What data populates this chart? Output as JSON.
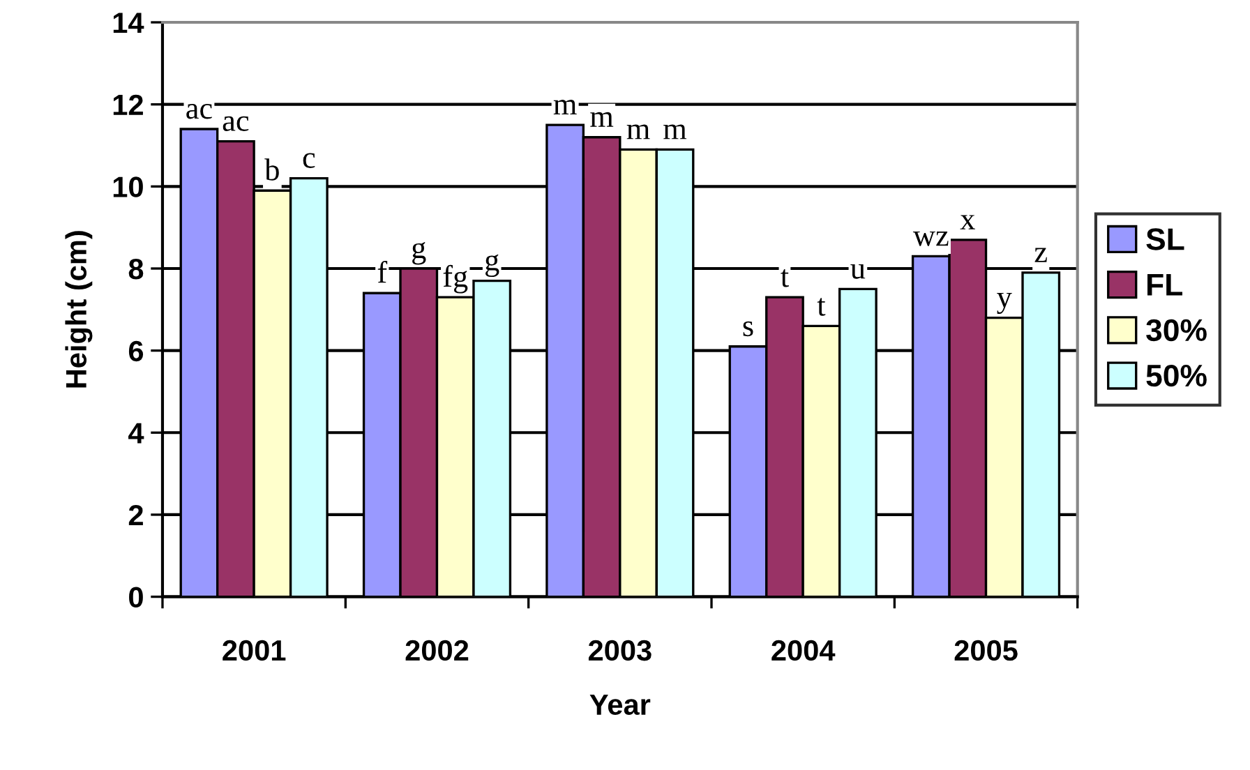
{
  "chart_data": {
    "type": "bar",
    "xlabel": "Year",
    "ylabel": "Height (cm)",
    "categories": [
      "2001",
      "2002",
      "2003",
      "2004",
      "2005"
    ],
    "series": [
      {
        "name": "SL",
        "color": "#9999ff",
        "values": [
          11.4,
          7.4,
          11.5,
          6.1,
          8.3
        ]
      },
      {
        "name": "FL",
        "color": "#993366",
        "values": [
          11.1,
          8.0,
          11.2,
          7.3,
          8.7
        ]
      },
      {
        "name": "30%",
        "color": "#ffffcc",
        "values": [
          9.9,
          7.3,
          10.9,
          6.6,
          6.8
        ]
      },
      {
        "name": "50%",
        "color": "#ccffff",
        "values": [
          10.2,
          7.7,
          10.9,
          7.5,
          7.9
        ]
      }
    ],
    "ylim": [
      0,
      14
    ],
    "yticks": [
      0,
      2,
      4,
      6,
      8,
      10,
      12,
      14
    ],
    "grid": "y",
    "legend": "right",
    "annotations": [
      "ac",
      "ac",
      "b",
      "c",
      "f",
      "g",
      "fg",
      "g",
      "m",
      "m",
      "m",
      "m",
      "s",
      "t",
      "t",
      "u",
      "wz",
      "x",
      "y",
      "z"
    ]
  }
}
